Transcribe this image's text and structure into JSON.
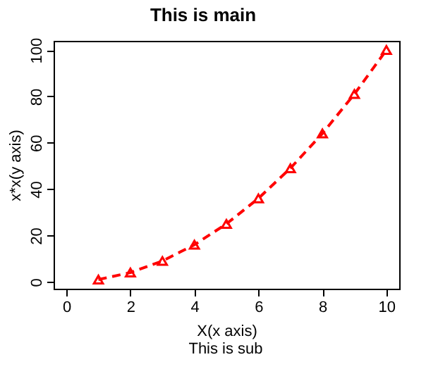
{
  "chart_data": {
    "type": "line",
    "title": "This is main",
    "subtitle": "This is sub",
    "xlabel": "X(x axis)",
    "ylabel": "x*x(y axis)",
    "x": [
      1,
      2,
      3,
      4,
      5,
      6,
      7,
      8,
      9,
      10
    ],
    "series": [
      {
        "color": "#ff0000",
        "values": [
          1,
          4,
          9,
          16,
          25,
          36,
          49,
          64,
          81,
          100
        ]
      }
    ],
    "xlim": [
      -0.4,
      10.4
    ],
    "xticks": [
      0,
      2,
      4,
      6,
      8,
      10
    ],
    "ylim": [
      -2.96,
      103.96
    ],
    "yticks": [
      0,
      20,
      40,
      60,
      80,
      100
    ],
    "marker": "triangle",
    "line_style": "dashed",
    "grid": false,
    "legend": false
  }
}
